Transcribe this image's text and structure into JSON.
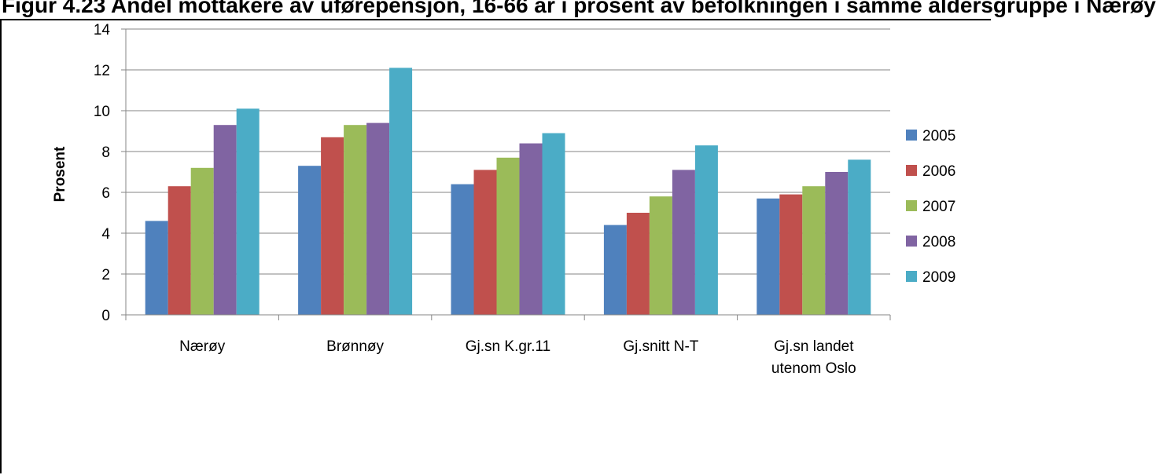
{
  "header": {
    "title": "Figur 4.23 Andel mottakere av uførepensjon, 16-66 år i prosent av befolkningen i samme aldersgruppe i Nærøy"
  },
  "chart_data": {
    "type": "bar",
    "categories": [
      "Nærøy",
      "Brønnøy",
      "Gj.sn K.gr.11",
      "Gj.snitt N-T",
      "Gj.sn landet utenom Oslo"
    ],
    "category_lines": [
      [
        "Nærøy"
      ],
      [
        "Brønnøy"
      ],
      [
        "Gj.sn K.gr.11"
      ],
      [
        "Gj.snitt N-T"
      ],
      [
        "Gj.sn landet",
        "utenom Oslo"
      ]
    ],
    "series": [
      {
        "name": "2005",
        "color": "#4F81BD",
        "values": [
          4.6,
          7.3,
          6.4,
          4.4,
          5.7
        ]
      },
      {
        "name": "2006",
        "color": "#C0504D",
        "values": [
          6.3,
          8.7,
          7.1,
          5.0,
          5.9
        ]
      },
      {
        "name": "2007",
        "color": "#9BBB59",
        "values": [
          7.2,
          9.3,
          7.7,
          5.8,
          6.3
        ]
      },
      {
        "name": "2008",
        "color": "#8064A2",
        "values": [
          9.3,
          9.4,
          8.4,
          7.1,
          7.0
        ]
      },
      {
        "name": "2009",
        "color": "#4BACC6",
        "values": [
          10.1,
          12.1,
          8.9,
          8.3,
          7.6
        ]
      }
    ],
    "ylabel": "Prosent",
    "xlabel": "",
    "ylim": [
      0,
      14
    ],
    "yticks": [
      0,
      2,
      4,
      6,
      8,
      10,
      12,
      14
    ],
    "grid": true,
    "legend_position": "right"
  }
}
